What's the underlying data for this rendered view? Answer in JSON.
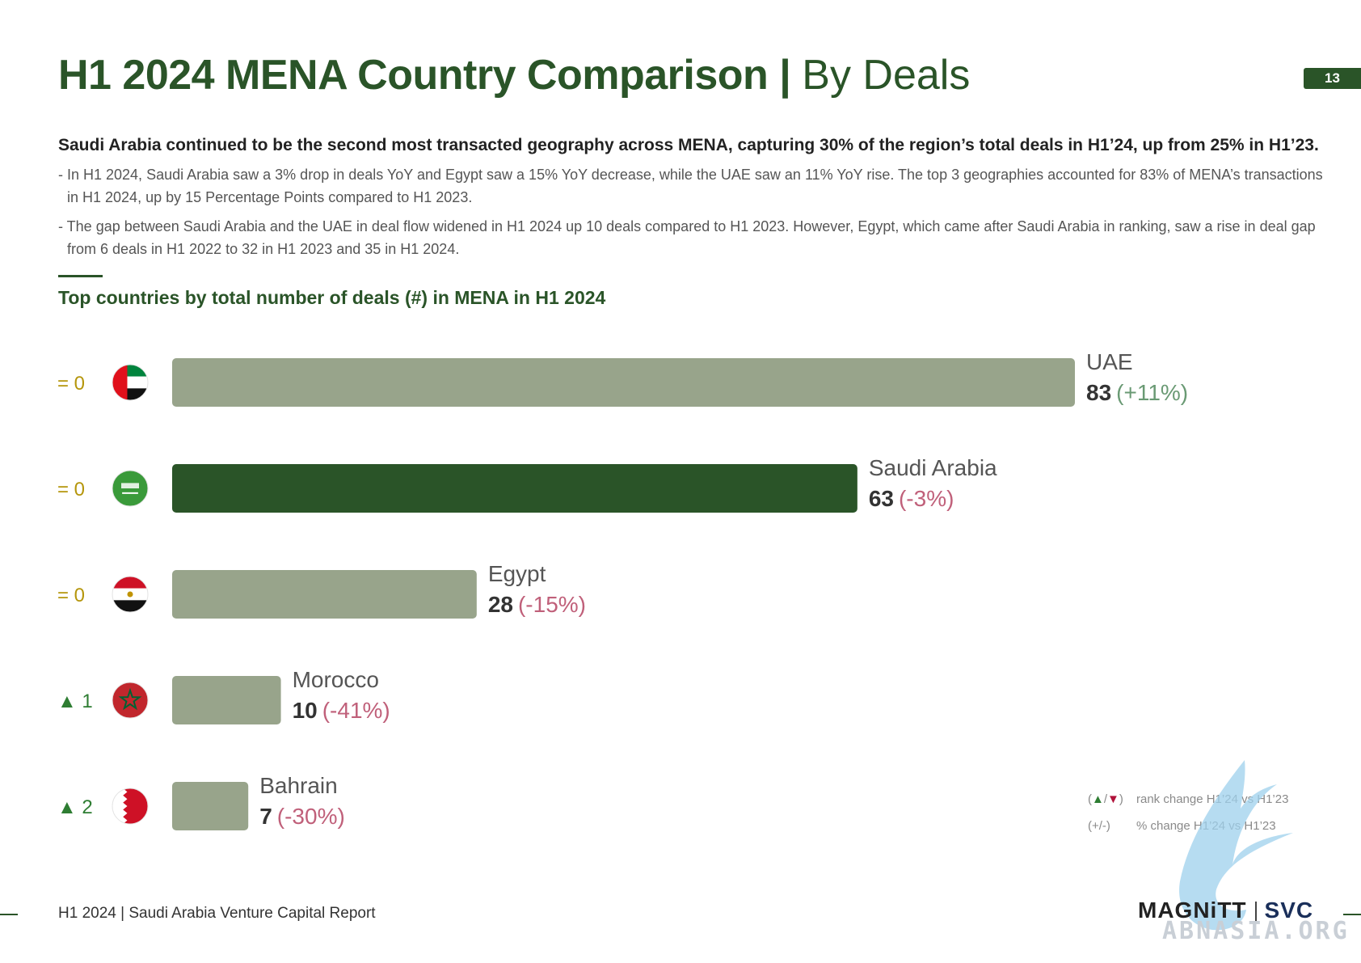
{
  "header": {
    "title_bold": "H1 2024 MENA Country Comparison",
    "title_sep": " | ",
    "title_light": "By Deals",
    "page_number": "13"
  },
  "summary": {
    "headline": "Saudi Arabia continued to be the second most transacted geography across MENA, capturing 30% of the region’s total deals in H1’24, up from 25% in H1’23.",
    "bullets": [
      "- In H1 2024, Saudi Arabia saw a 3% drop in deals YoY and Egypt saw a 15% YoY decrease, while the UAE saw an 11% YoY rise. The top 3 geographies accounted for 83% of MENA’s transactions in H1 2024, up by 15 Percentage Points compared to H1 2023.",
      "- The gap between Saudi Arabia and the UAE in deal flow widened in H1 2024 up 10 deals compared to H1 2023. However, Egypt, which came after Saudi Arabia in ranking, saw a rise in deal gap from 6 deals in H1 2022 to 32 in H1 2023 and 35 in H1 2024."
    ]
  },
  "chart_data": {
    "type": "bar",
    "orientation": "horizontal",
    "title": "Top countries by total number of deals (#) in MENA in H1 2024",
    "categories": [
      "UAE",
      "Saudi Arabia",
      "Egypt",
      "Morocco",
      "Bahrain"
    ],
    "values": [
      83,
      63,
      28,
      10,
      7
    ],
    "pct_change_labels": [
      "(+11%)",
      "(-3%)",
      "(-15%)",
      "(-41%)",
      "(-30%)"
    ],
    "rank_change_labels": [
      "= 0",
      "= 0",
      "= 0",
      "▲ 1",
      "▲ 2"
    ],
    "rank_change_direction": [
      "none",
      "none",
      "none",
      "up",
      "up"
    ],
    "flag_icons": [
      "uae-flag-icon",
      "saudi-flag-icon",
      "egypt-flag-icon",
      "morocco-flag-icon",
      "bahrain-flag-icon"
    ],
    "highlight_category": "Saudi Arabia",
    "xlim": [
      0,
      83
    ],
    "colors": {
      "bar_default": "#98a48b",
      "bar_highlight": "#2a5428",
      "positive_change": "#6a9a74",
      "negative_change": "#c0607a",
      "neutral_rank": "#b5960c",
      "up_rank": "#2e7d32"
    }
  },
  "legend": {
    "rank_symbol": "(▲/▼)",
    "rank_text": "rank change H1’24 vs H1’23",
    "pct_symbol": "(+/-)",
    "pct_text": "% change H1’24 vs H1’23"
  },
  "footer": {
    "report_label": "H1 2024 | Saudi Arabia Venture Capital Report",
    "logo_magnitt": "MAGNiTT",
    "logo_svc": "SVC",
    "watermark_text": "ABNASIA.ORG"
  },
  "theme": {
    "primary": "#2a5428"
  }
}
